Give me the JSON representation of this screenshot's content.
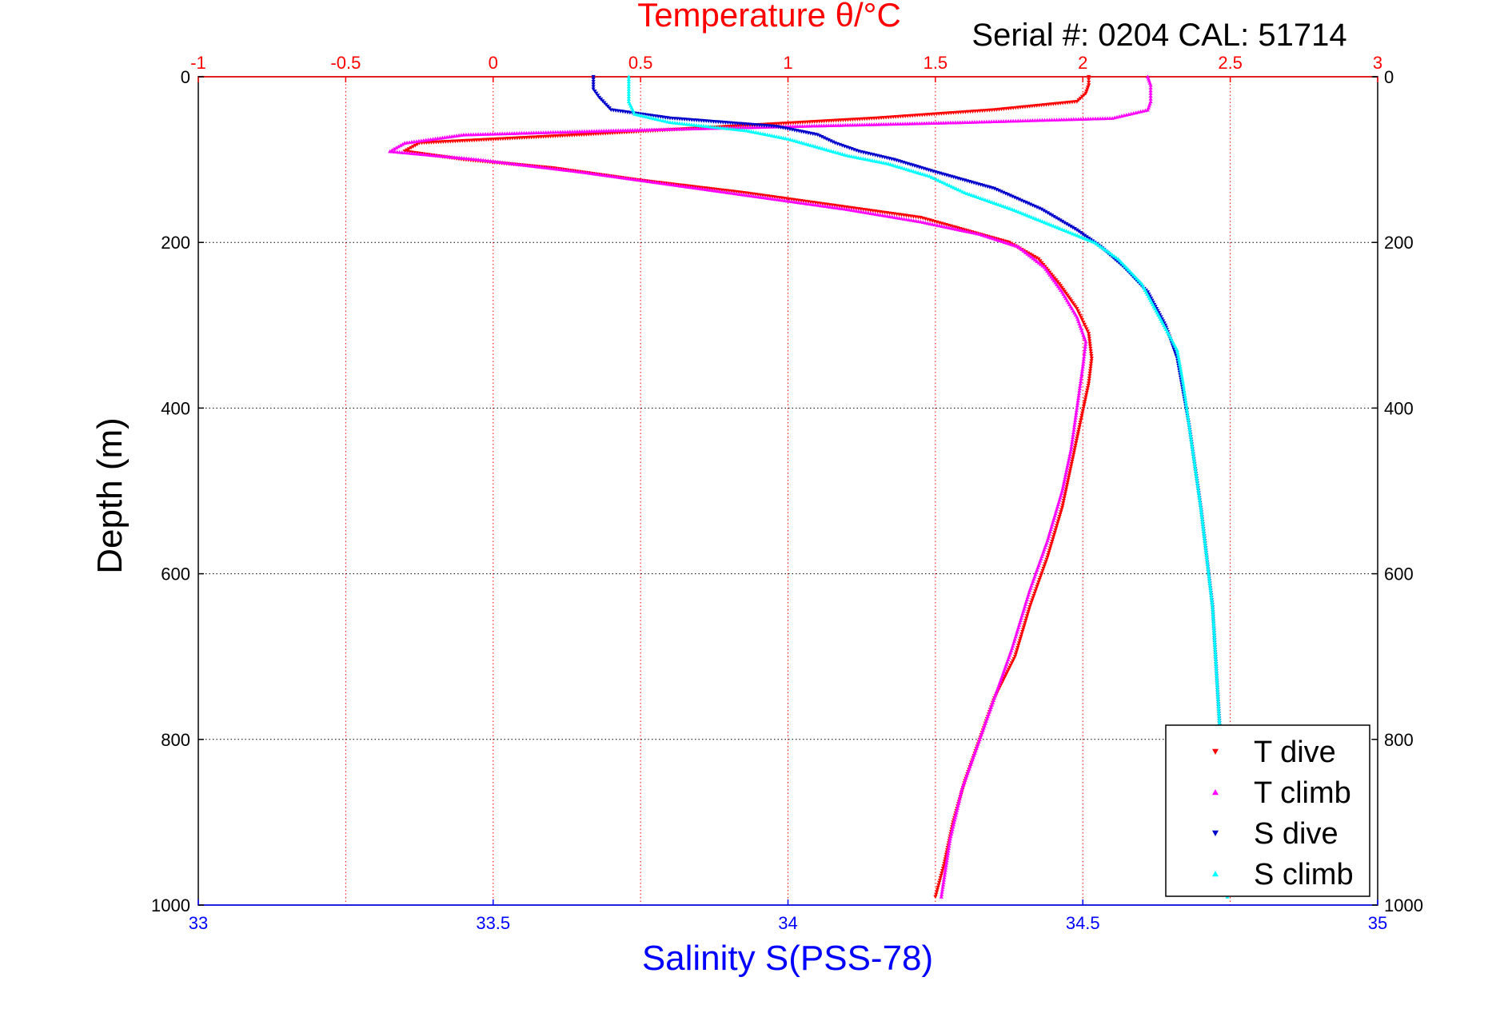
{
  "chart_data": {
    "type": "scatter",
    "title": "Temperature θ/°C",
    "subtitle": "Serial #: 0204   CAL: 51714",
    "xlabel_bottom": "Salinity S(PSS-78)",
    "xlabel_top": "Temperature θ/°C",
    "ylabel": "Depth (m)",
    "x_bottom_lim": [
      33,
      35
    ],
    "x_top_lim": [
      -1,
      3
    ],
    "ylim": [
      0,
      1000
    ],
    "y_reversed": true,
    "x_bottom_ticks": [
      "33",
      "33.5",
      "34",
      "34.5",
      "35"
    ],
    "x_top_ticks": [
      "-1",
      "-0.5",
      "0",
      "0.5",
      "1",
      "1.5",
      "2",
      "2.5",
      "3"
    ],
    "y_ticks": [
      "0",
      "200",
      "400",
      "600",
      "800",
      "1000"
    ],
    "grid": true,
    "legend_position": "bottom-right",
    "colors": {
      "temperature_axis": "#ff0000",
      "salinity_axis": "#0000ff",
      "t_dive": "#ff0000",
      "t_climb": "#ff00ff",
      "s_dive": "#0000cc",
      "s_climb": "#00ffff"
    },
    "series": [
      {
        "name": "T dive",
        "axis": "temperature",
        "marker": "triangle-down",
        "color": "#ff0000",
        "points": [
          [
            2.02,
            0
          ],
          [
            2.02,
            10
          ],
          [
            2.01,
            20
          ],
          [
            1.98,
            30
          ],
          [
            1.7,
            40
          ],
          [
            1.3,
            50
          ],
          [
            0.8,
            60
          ],
          [
            0.3,
            70
          ],
          [
            -0.25,
            80
          ],
          [
            -0.3,
            90
          ],
          [
            -0.1,
            100
          ],
          [
            0.2,
            110
          ],
          [
            0.5,
            125
          ],
          [
            0.85,
            140
          ],
          [
            1.15,
            155
          ],
          [
            1.45,
            170
          ],
          [
            1.6,
            185
          ],
          [
            1.75,
            200
          ],
          [
            1.85,
            220
          ],
          [
            1.92,
            250
          ],
          [
            1.98,
            280
          ],
          [
            2.02,
            310
          ],
          [
            2.03,
            340
          ],
          [
            2.02,
            370
          ],
          [
            1.99,
            420
          ],
          [
            1.96,
            470
          ],
          [
            1.93,
            520
          ],
          [
            1.88,
            580
          ],
          [
            1.82,
            640
          ],
          [
            1.77,
            700
          ],
          [
            1.7,
            750
          ],
          [
            1.65,
            800
          ],
          [
            1.6,
            850
          ],
          [
            1.56,
            900
          ],
          [
            1.53,
            950
          ],
          [
            1.5,
            990
          ]
        ]
      },
      {
        "name": "T climb",
        "axis": "temperature",
        "marker": "triangle-up",
        "color": "#ff00ff",
        "points": [
          [
            2.22,
            0
          ],
          [
            2.23,
            10
          ],
          [
            2.23,
            20
          ],
          [
            2.23,
            30
          ],
          [
            2.22,
            40
          ],
          [
            2.1,
            50
          ],
          [
            1.6,
            55
          ],
          [
            1.0,
            60
          ],
          [
            0.4,
            65
          ],
          [
            -0.1,
            70
          ],
          [
            -0.3,
            80
          ],
          [
            -0.35,
            90
          ],
          [
            -0.05,
            100
          ],
          [
            0.3,
            115
          ],
          [
            0.6,
            130
          ],
          [
            0.9,
            145
          ],
          [
            1.2,
            160
          ],
          [
            1.45,
            175
          ],
          [
            1.65,
            190
          ],
          [
            1.78,
            205
          ],
          [
            1.87,
            230
          ],
          [
            1.93,
            260
          ],
          [
            1.98,
            290
          ],
          [
            2.01,
            320
          ],
          [
            2.0,
            350
          ],
          [
            1.98,
            400
          ],
          [
            1.96,
            450
          ],
          [
            1.93,
            500
          ],
          [
            1.88,
            560
          ],
          [
            1.82,
            620
          ],
          [
            1.76,
            690
          ],
          [
            1.7,
            750
          ],
          [
            1.65,
            800
          ],
          [
            1.59,
            860
          ],
          [
            1.55,
            920
          ],
          [
            1.52,
            990
          ]
        ]
      },
      {
        "name": "S dive",
        "axis": "salinity",
        "marker": "triangle-down",
        "color": "#0000cc",
        "points": [
          [
            33.67,
            0
          ],
          [
            33.67,
            15
          ],
          [
            33.68,
            25
          ],
          [
            33.7,
            40
          ],
          [
            33.8,
            50
          ],
          [
            33.98,
            60
          ],
          [
            34.05,
            70
          ],
          [
            34.08,
            80
          ],
          [
            34.12,
            90
          ],
          [
            34.18,
            100
          ],
          [
            34.25,
            115
          ],
          [
            34.35,
            135
          ],
          [
            34.43,
            160
          ],
          [
            34.49,
            185
          ],
          [
            34.53,
            205
          ],
          [
            34.57,
            230
          ],
          [
            34.61,
            260
          ],
          [
            34.64,
            300
          ],
          [
            34.66,
            340
          ],
          [
            34.67,
            380
          ],
          [
            34.68,
            420
          ],
          [
            34.69,
            470
          ],
          [
            34.7,
            520
          ],
          [
            34.71,
            580
          ],
          [
            34.72,
            640
          ],
          [
            34.725,
            700
          ],
          [
            34.73,
            760
          ],
          [
            34.735,
            820
          ],
          [
            34.74,
            880
          ],
          [
            34.74,
            940
          ],
          [
            34.745,
            990
          ]
        ]
      },
      {
        "name": "S climb",
        "axis": "salinity",
        "marker": "triangle-up",
        "color": "#00ffff",
        "points": [
          [
            33.73,
            0
          ],
          [
            33.73,
            15
          ],
          [
            33.73,
            30
          ],
          [
            33.74,
            45
          ],
          [
            33.8,
            55
          ],
          [
            33.93,
            65
          ],
          [
            34.0,
            75
          ],
          [
            34.05,
            85
          ],
          [
            34.1,
            95
          ],
          [
            34.17,
            105
          ],
          [
            34.24,
            120
          ],
          [
            34.3,
            140
          ],
          [
            34.38,
            160
          ],
          [
            34.45,
            180
          ],
          [
            34.52,
            200
          ],
          [
            34.56,
            220
          ],
          [
            34.6,
            250
          ],
          [
            34.63,
            290
          ],
          [
            34.66,
            330
          ],
          [
            34.67,
            370
          ],
          [
            34.68,
            420
          ],
          [
            34.69,
            470
          ],
          [
            34.7,
            520
          ],
          [
            34.71,
            580
          ],
          [
            34.72,
            640
          ],
          [
            34.725,
            700
          ],
          [
            34.73,
            760
          ],
          [
            34.735,
            820
          ],
          [
            34.74,
            880
          ],
          [
            34.745,
            940
          ],
          [
            34.745,
            990
          ]
        ]
      }
    ]
  }
}
